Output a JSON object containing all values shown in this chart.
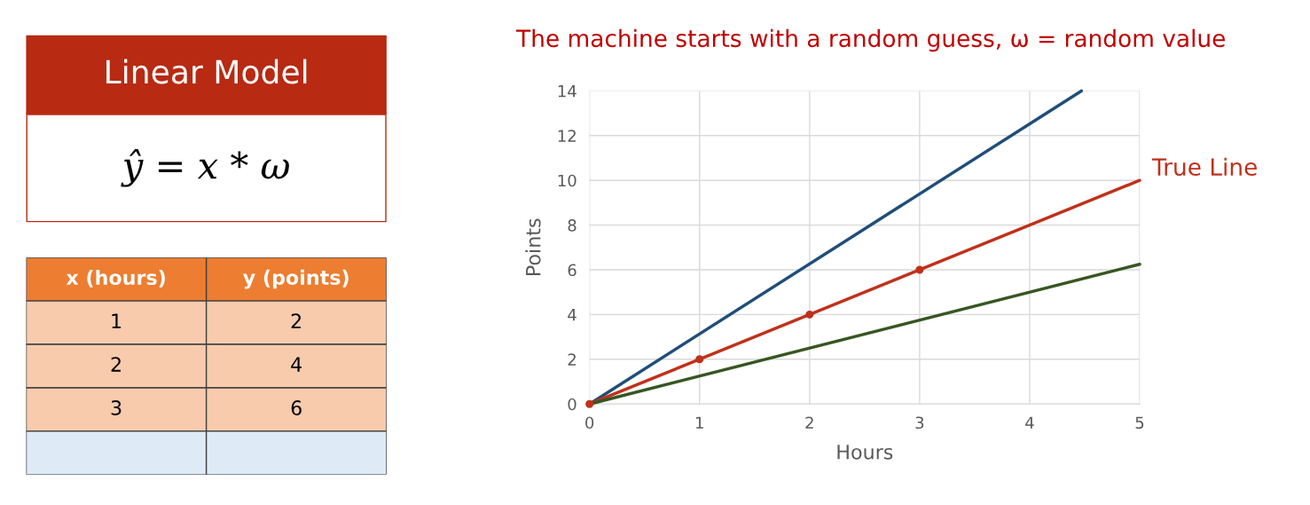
{
  "chart_data": [
    {
      "type": "other",
      "title": "Linear Model",
      "annotations": [
        "ŷ = x * ω"
      ]
    },
    {
      "type": "other",
      "categories": [
        "x (hours)",
        "y (points)"
      ],
      "annotations": [
        "1",
        "2",
        "2",
        "4",
        "3",
        "6"
      ]
    },
    {
      "type": "line",
      "title": "The machine starts with a random guess, ω = random value",
      "xlabel": "Hours",
      "ylabel": "Points",
      "xlim": [
        0,
        5
      ],
      "ylim": [
        0,
        14
      ],
      "xticks": [
        0,
        1,
        2,
        3,
        4,
        5
      ],
      "yticks": [
        0,
        2,
        4,
        6,
        8,
        10,
        12,
        14
      ],
      "grid": true,
      "series": [
        {
          "color": "#1f4e79",
          "x": [
            0,
            4.47
          ],
          "values": [
            0,
            14
          ]
        },
        {
          "name": "True Line",
          "color": "#c0311b",
          "x": [
            0,
            5
          ],
          "values": [
            0,
            10
          ]
        },
        {
          "color": "#375623",
          "x": [
            0,
            5
          ],
          "values": [
            0,
            6.25
          ]
        },
        {
          "type": "scatter",
          "color": "#c0311b",
          "x": [
            0,
            1,
            2,
            3
          ],
          "values": [
            0,
            2,
            4,
            6
          ]
        }
      ]
    }
  ]
}
